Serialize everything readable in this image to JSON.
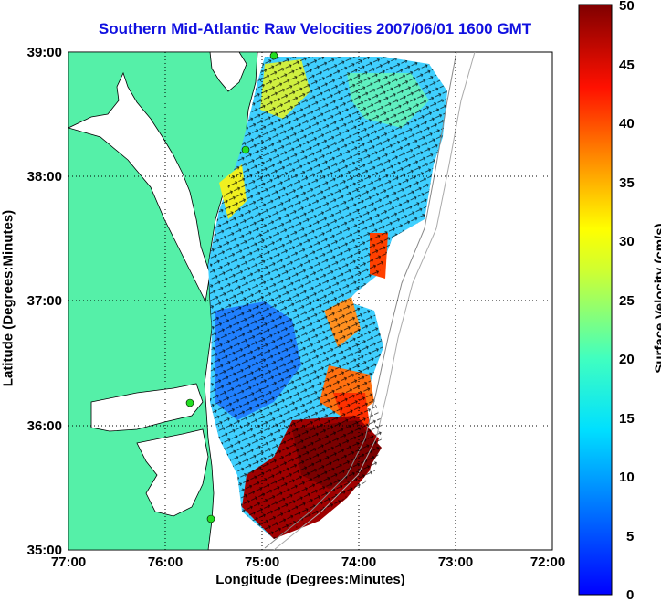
{
  "title": "Southern Mid-Atlantic Raw Velocities 2007/06/01 1600 GMT",
  "xlabel": "Longitude (Degrees:Minutes)",
  "ylabel": "Latitude (Degrees:Minutes)",
  "colorbar_label": "Surface Velocity (cm/s)",
  "x_ticks": [
    "77:00",
    "76:00",
    "75:00",
    "74:00",
    "73:00",
    "72:00"
  ],
  "y_ticks": [
    "39:00",
    "38:00",
    "37:00",
    "36:00",
    "35:00"
  ],
  "colorbar_ticks": [
    "50",
    "45",
    "40",
    "35",
    "30",
    "25",
    "20",
    "15",
    "10",
    "5",
    "0"
  ],
  "colors": {
    "land": "#55f0a8",
    "water": "#ffffff",
    "title": "#1010e0",
    "station": "#22dd22"
  }
}
